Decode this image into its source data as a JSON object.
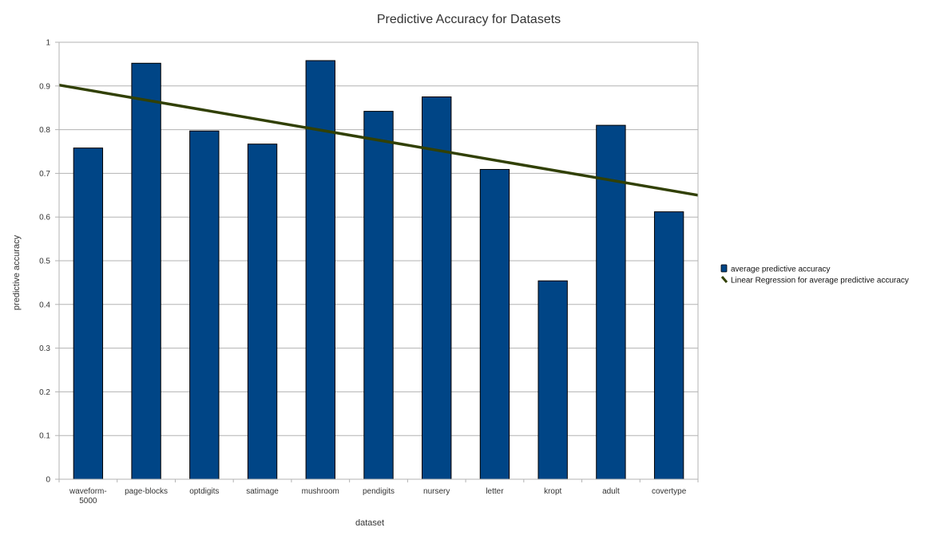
{
  "chart_data": {
    "type": "bar",
    "title": "Predictive Accuracy for Datasets",
    "xlabel": "dataset",
    "ylabel": "predictive accuracy",
    "categories": [
      [
        "waveform-",
        "5000"
      ],
      [
        "page-blocks"
      ],
      [
        "optdigits"
      ],
      [
        "satimage"
      ],
      [
        "mushroom"
      ],
      [
        "pendigits"
      ],
      [
        "nursery"
      ],
      [
        "letter"
      ],
      [
        "kropt"
      ],
      [
        "adult"
      ],
      [
        "covertype"
      ]
    ],
    "series": [
      {
        "name": "average predictive accuracy",
        "color": "#004586",
        "values": [
          0.758,
          0.952,
          0.797,
          0.767,
          0.958,
          0.842,
          0.875,
          0.709,
          0.454,
          0.81,
          0.612
        ]
      }
    ],
    "trendline": {
      "name": "Linear Regression for average predictive accuracy",
      "color": "#314004",
      "start": 0.902,
      "end": 0.65
    },
    "ylim": [
      0,
      1
    ],
    "yticks": [
      "0",
      "0.1",
      "0.2",
      "0.3",
      "0.4",
      "0.5",
      "0.6",
      "0.7",
      "0.8",
      "0.9",
      "1"
    ],
    "grid": true,
    "legend_position": "right"
  }
}
